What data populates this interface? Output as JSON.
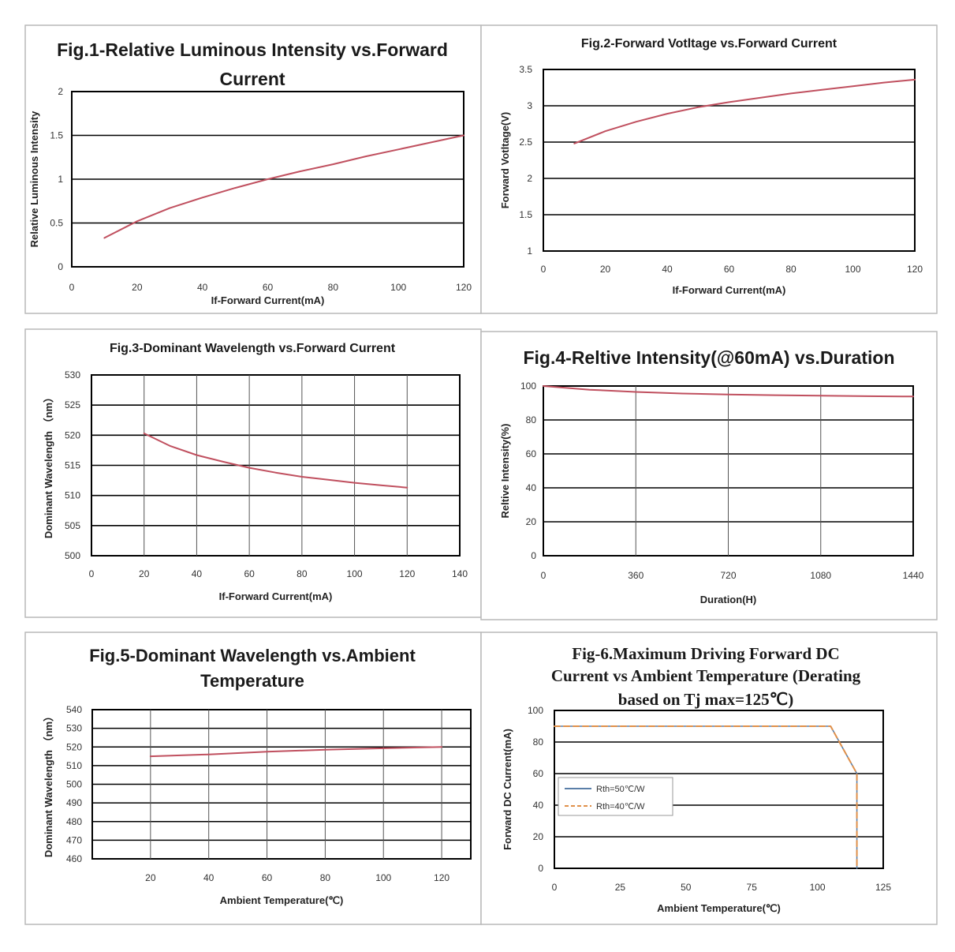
{
  "colors": {
    "curve": "#c0505f",
    "grid": "#000000",
    "panel_border": "#b9b9b9",
    "blue_line": "#5a7fa8",
    "orange_dash": "#e0904a"
  },
  "chart_data": [
    {
      "type": "line",
      "title": "Fig.1-Relative Luminous Intensity vs.Forward",
      "title_line2": "Current",
      "xlabel": "If-Forward Current(mA)",
      "ylabel": "Relative Luminous Intensity",
      "xlim": [
        0,
        120
      ],
      "ylim": [
        0,
        2
      ],
      "xticks": [
        "0",
        "20",
        "40",
        "60",
        "80",
        "100",
        "120"
      ],
      "yticks": [
        "0",
        "0.5",
        "1",
        "1.5",
        "2"
      ],
      "grid": "horizontal",
      "series": [
        {
          "x": [
            10,
            20,
            30,
            40,
            50,
            60,
            70,
            80,
            90,
            100,
            110,
            120
          ],
          "y": [
            0.33,
            0.52,
            0.67,
            0.79,
            0.9,
            1.0,
            1.09,
            1.17,
            1.26,
            1.34,
            1.42,
            1.5
          ]
        }
      ]
    },
    {
      "type": "line",
      "title": "Fig.2-Forward Votltage vs.Forward Current",
      "xlabel": "If-Forward Current(mA)",
      "ylabel": "Forward Votltage(V)",
      "xlim": [
        0,
        120
      ],
      "ylim": [
        1,
        3.5
      ],
      "xticks": [
        "0",
        "20",
        "40",
        "60",
        "80",
        "100",
        "120"
      ],
      "yticks": [
        "1",
        "1.5",
        "2",
        "2.5",
        "3",
        "3.5"
      ],
      "grid": "horizontal",
      "series": [
        {
          "x": [
            10,
            20,
            30,
            40,
            50,
            60,
            70,
            80,
            90,
            100,
            110,
            120
          ],
          "y": [
            2.48,
            2.65,
            2.78,
            2.89,
            2.98,
            3.05,
            3.11,
            3.17,
            3.22,
            3.27,
            3.32,
            3.36
          ]
        }
      ]
    },
    {
      "type": "line",
      "title": "Fig.3-Dominant Wavelength vs.Forward Current",
      "xlabel": "If-Forward Current(mA)",
      "ylabel": "Dominant Wavelength （nm）",
      "xlim": [
        0,
        140
      ],
      "ylim": [
        500,
        530
      ],
      "xticks": [
        "0",
        "20",
        "40",
        "60",
        "80",
        "100",
        "120",
        "140"
      ],
      "yticks": [
        "500",
        "505",
        "510",
        "515",
        "520",
        "525",
        "530"
      ],
      "grid": "both",
      "series": [
        {
          "x": [
            20,
            30,
            40,
            50,
            60,
            70,
            80,
            90,
            100,
            110,
            120
          ],
          "y": [
            520.3,
            518.2,
            516.7,
            515.6,
            514.6,
            513.8,
            513.1,
            512.6,
            512.1,
            511.7,
            511.3
          ]
        }
      ]
    },
    {
      "type": "line",
      "title": "Fig.4-Reltive Intensity(@60mA) vs.Duration",
      "xlabel": "Duration(H)",
      "ylabel": "Reltive Intensity(%)",
      "xlim": [
        0,
        1440
      ],
      "ylim": [
        0,
        100
      ],
      "xticks": [
        "0",
        "360",
        "720",
        "1080",
        "1440"
      ],
      "yticks": [
        "0",
        "20",
        "40",
        "60",
        "80",
        "100"
      ],
      "grid": "both",
      "series": [
        {
          "x": [
            0,
            180,
            360,
            540,
            720,
            900,
            1080,
            1260,
            1440
          ],
          "y": [
            100,
            97.8,
            96.5,
            95.6,
            95,
            94.6,
            94.3,
            94.0,
            93.8
          ]
        }
      ]
    },
    {
      "type": "line",
      "title": "Fig.5-Dominant Wavelength vs.Ambient",
      "title_line2": "Temperature",
      "xlabel": "Ambient Temperature(℃)",
      "ylabel": "Dominant Wavelength （nm）",
      "xlim": [
        0,
        130
      ],
      "ylim": [
        460,
        540
      ],
      "xticks": [
        "20",
        "40",
        "60",
        "80",
        "100",
        "120"
      ],
      "yticks": [
        "460",
        "470",
        "480",
        "490",
        "500",
        "510",
        "520",
        "530",
        "540"
      ],
      "grid": "both",
      "series": [
        {
          "x": [
            20,
            40,
            60,
            80,
            100,
            120
          ],
          "y": [
            515,
            516,
            517.5,
            518.5,
            519.3,
            520
          ]
        }
      ]
    },
    {
      "type": "line",
      "title": "Fig-6.Maximum Driving Forward DC",
      "title_line2": "Current vs Ambient Temperature (Derating",
      "title_line3": "based on Tj max=125℃)",
      "xlabel": "Ambient Temperature(℃)",
      "ylabel": "Forward DC Current(mA)",
      "xlim": [
        0,
        125
      ],
      "ylim": [
        0,
        100
      ],
      "xticks": [
        "0",
        "25",
        "50",
        "75",
        "100",
        "125"
      ],
      "yticks": [
        "0",
        "20",
        "40",
        "60",
        "80",
        "100"
      ],
      "grid": "horizontal",
      "legend": "inside-left",
      "series": [
        {
          "name": "Rth=50℃/W",
          "style": "solid",
          "x": [
            0,
            105,
            115,
            115
          ],
          "y": [
            90,
            90,
            60,
            0
          ]
        },
        {
          "name": "Rth=40℃/W",
          "style": "dashed",
          "x": [
            0,
            105,
            115,
            115
          ],
          "y": [
            90,
            90,
            60,
            0
          ]
        }
      ]
    }
  ]
}
